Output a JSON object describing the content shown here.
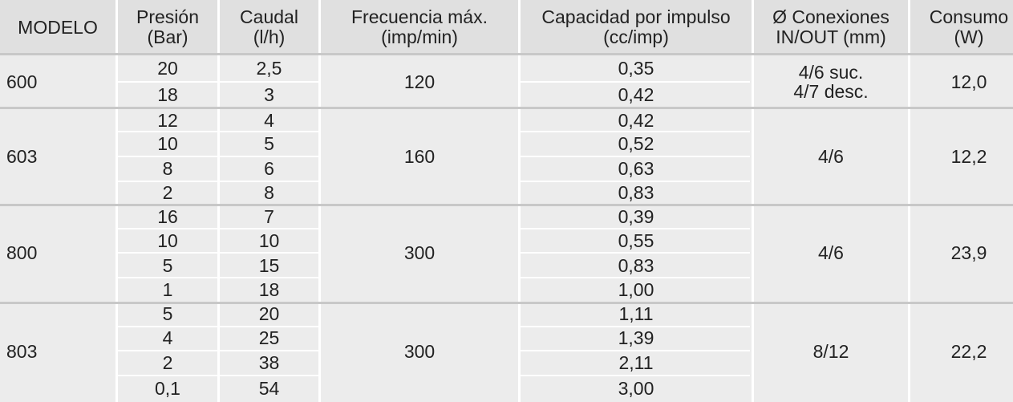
{
  "headers": {
    "modelo": "MODELO",
    "presion": [
      "Presión",
      "(Bar)"
    ],
    "caudal": [
      "Caudal",
      "(l/h)"
    ],
    "frecuencia": [
      "Frecuencia máx.",
      "(imp/min)"
    ],
    "capacidad": [
      "Capacidad por impulso",
      "(cc/imp)"
    ],
    "conexiones": [
      "Ø Conexiones",
      "IN/OUT  (mm)"
    ],
    "consumo": [
      "Consumo",
      "(W)"
    ]
  },
  "groups": [
    {
      "modelo": "600",
      "frecuencia": "120",
      "conexiones": [
        "4/6 suc.",
        "4/7 desc."
      ],
      "consumo": "12,0",
      "rows": [
        {
          "presion": "20",
          "caudal": "2,5",
          "capacidad": "0,35"
        },
        {
          "presion": "18",
          "caudal": "3",
          "capacidad": "0,42"
        }
      ]
    },
    {
      "modelo": "603",
      "frecuencia": "160",
      "conexiones": [
        "4/6"
      ],
      "consumo": "12,2",
      "rows": [
        {
          "presion": "12",
          "caudal": "4",
          "capacidad": "0,42"
        },
        {
          "presion": "10",
          "caudal": "5",
          "capacidad": "0,52"
        },
        {
          "presion": "8",
          "caudal": "6",
          "capacidad": "0,63"
        },
        {
          "presion": "2",
          "caudal": "8",
          "capacidad": "0,83"
        }
      ]
    },
    {
      "modelo": "800",
      "frecuencia": "300",
      "conexiones": [
        "4/6"
      ],
      "consumo": "23,9",
      "rows": [
        {
          "presion": "16",
          "caudal": "7",
          "capacidad": "0,39"
        },
        {
          "presion": "10",
          "caudal": "10",
          "capacidad": "0,55"
        },
        {
          "presion": "5",
          "caudal": "15",
          "capacidad": "0,83"
        },
        {
          "presion": "1",
          "caudal": "18",
          "capacidad": "1,00"
        }
      ]
    },
    {
      "modelo": "803",
      "frecuencia": "300",
      "conexiones": [
        "8/12"
      ],
      "consumo": "22,2",
      "rows": [
        {
          "presion": "5",
          "caudal": "20",
          "capacidad": "1,11"
        },
        {
          "presion": "4",
          "caudal": "25",
          "capacidad": "1,39"
        },
        {
          "presion": "2",
          "caudal": "38",
          "capacidad": "2,11"
        },
        {
          "presion": "0,1",
          "caudal": "54",
          "capacidad": "3,00"
        }
      ]
    }
  ]
}
